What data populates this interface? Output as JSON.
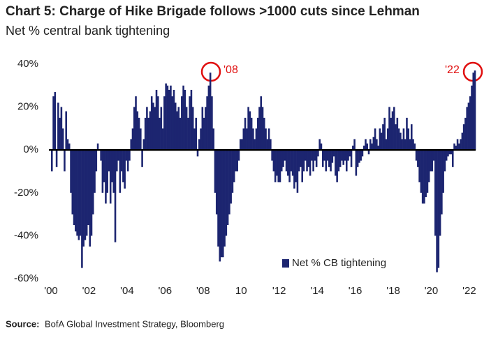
{
  "chart_data": {
    "type": "bar",
    "title": "Chart 5: Charge of Hike Brigade follows >1000 cuts since Lehman",
    "subtitle": "Net % central bank tightening",
    "source_label": "Source:",
    "source": "BofA Global Investment Strategy, Bloomberg",
    "annotations": [
      {
        "text": "'08"
      },
      {
        "text": "'22"
      }
    ],
    "ylim": [
      -60,
      40
    ],
    "yticks": [
      {
        "value": 40,
        "label": "40%"
      },
      {
        "value": 20,
        "label": "20%"
      },
      {
        "value": 0,
        "label": "0%"
      },
      {
        "value": -20,
        "label": "-20%"
      },
      {
        "value": -40,
        "label": "-40%"
      },
      {
        "value": -60,
        "label": "-60%"
      }
    ],
    "categories": [
      "'00",
      null,
      null,
      null,
      null,
      null,
      null,
      null,
      null,
      null,
      null,
      null,
      null,
      null,
      null,
      null,
      null,
      null,
      null,
      null,
      null,
      null,
      null,
      null,
      "'02",
      null,
      null,
      null,
      null,
      null,
      null,
      null,
      null,
      null,
      null,
      null,
      null,
      null,
      null,
      null,
      null,
      null,
      null,
      null,
      null,
      null,
      null,
      null,
      "'04",
      null,
      null,
      null,
      null,
      null,
      null,
      null,
      null,
      null,
      null,
      null,
      null,
      null,
      null,
      null,
      null,
      null,
      null,
      null,
      null,
      null,
      null,
      null,
      "'06",
      null,
      null,
      null,
      null,
      null,
      null,
      null,
      null,
      null,
      null,
      null,
      null,
      null,
      null,
      null,
      null,
      null,
      null,
      null,
      null,
      null,
      null,
      null,
      "'08",
      null,
      null,
      null,
      null,
      null,
      null,
      null,
      null,
      null,
      null,
      null,
      null,
      null,
      null,
      null,
      null,
      null,
      null,
      null,
      null,
      null,
      null,
      null,
      "10",
      null,
      null,
      null,
      null,
      null,
      null,
      null,
      null,
      null,
      null,
      null,
      null,
      null,
      null,
      null,
      null,
      null,
      null,
      null,
      null,
      null,
      null,
      null,
      "'12",
      null,
      null,
      null,
      null,
      null,
      null,
      null,
      null,
      null,
      null,
      null,
      null,
      null,
      null,
      null,
      null,
      null,
      null,
      null,
      null,
      null,
      null,
      null,
      "'14",
      null,
      null,
      null,
      null,
      null,
      null,
      null,
      null,
      null,
      null,
      null,
      null,
      null,
      null,
      null,
      null,
      null,
      null,
      null,
      null,
      null,
      null,
      null,
      "'16",
      null,
      null,
      null,
      null,
      null,
      null,
      null,
      null,
      null,
      null,
      null,
      null,
      null,
      null,
      null,
      null,
      null,
      null,
      null,
      null,
      null,
      null,
      null,
      "'18",
      null,
      null,
      null,
      null,
      null,
      null,
      null,
      null,
      null,
      null,
      null,
      null,
      null,
      null,
      null,
      null,
      null,
      null,
      null,
      null,
      null,
      null,
      null,
      "'20",
      null,
      null,
      null,
      null,
      null,
      null,
      null,
      null,
      null,
      null,
      null,
      null,
      null,
      null,
      null,
      null,
      null,
      null,
      null,
      null,
      null,
      null,
      null,
      "'22",
      null,
      null,
      null
    ],
    "series": [
      {
        "name": "Net % CB tightening",
        "color": "#1c2570",
        "values": [
          -10,
          25,
          27,
          -8,
          22,
          15,
          20,
          10,
          -10,
          18,
          5,
          3,
          -20,
          -30,
          -35,
          -38,
          -40,
          -42,
          -40,
          -55,
          -45,
          -42,
          -40,
          -35,
          -45,
          -40,
          -30,
          -20,
          -10,
          3,
          0,
          -5,
          -20,
          -15,
          -25,
          -20,
          -10,
          -25,
          -15,
          -20,
          -43,
          -10,
          -5,
          -20,
          -10,
          -15,
          -18,
          -5,
          -10,
          -5,
          5,
          10,
          20,
          25,
          18,
          15,
          10,
          -8,
          5,
          15,
          20,
          15,
          18,
          25,
          22,
          20,
          28,
          25,
          15,
          20,
          10,
          25,
          31,
          30,
          28,
          30,
          25,
          28,
          22,
          18,
          20,
          15,
          25,
          30,
          28,
          20,
          15,
          25,
          28,
          20,
          10,
          15,
          -3,
          5,
          10,
          20,
          15,
          20,
          25,
          30,
          36,
          25,
          10,
          -20,
          -30,
          -45,
          -52,
          -50,
          -50,
          -45,
          -40,
          -35,
          -30,
          -25,
          -20,
          -15,
          -10,
          -10,
          -5,
          5,
          5,
          10,
          15,
          10,
          20,
          18,
          15,
          10,
          5,
          10,
          15,
          20,
          25,
          20,
          15,
          10,
          5,
          10,
          5,
          -5,
          -10,
          -15,
          -12,
          -15,
          -15,
          -10,
          -8,
          -5,
          -10,
          -12,
          -15,
          -10,
          -12,
          -18,
          -15,
          -20,
          -10,
          -8,
          -15,
          -10,
          -5,
          -10,
          -8,
          -12,
          -5,
          -10,
          -5,
          -8,
          -3,
          5,
          3,
          -8,
          -5,
          -10,
          -5,
          -8,
          -10,
          -6,
          -3,
          -12,
          -15,
          -10,
          -8,
          -5,
          -7,
          -5,
          -10,
          -5,
          -3,
          -8,
          2,
          5,
          -12,
          -8,
          -6,
          -5,
          -3,
          2,
          5,
          3,
          -2,
          5,
          3,
          6,
          10,
          5,
          2,
          10,
          8,
          12,
          15,
          5,
          10,
          20,
          15,
          18,
          20,
          12,
          15,
          10,
          8,
          5,
          10,
          5,
          15,
          10,
          5,
          12,
          5,
          3,
          -5,
          -8,
          -15,
          -20,
          -25,
          -25,
          -22,
          -20,
          -15,
          -10,
          -10,
          -5,
          -40,
          -57,
          -55,
          -40,
          -30,
          -20,
          -10,
          -5,
          -3,
          -2,
          -2,
          -8,
          3,
          2,
          5,
          3,
          5,
          8,
          12,
          15,
          20,
          22,
          25,
          30,
          36,
          37
        ]
      }
    ]
  }
}
